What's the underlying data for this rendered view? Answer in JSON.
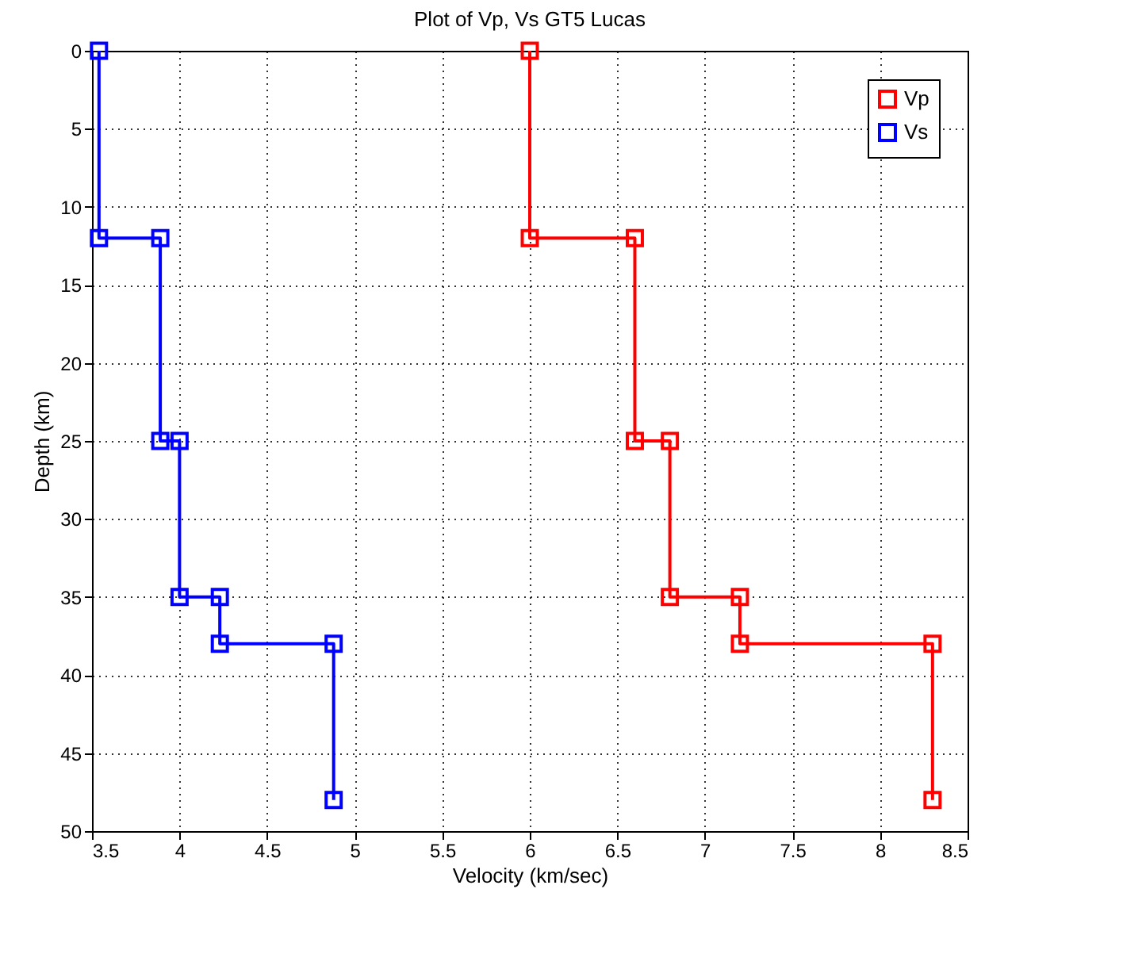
{
  "chart_data": {
    "type": "line",
    "title": "Plot of Vp, Vs        GT5 Lucas",
    "xlabel": "Velocity (km/sec)",
    "ylabel": "Depth (km)",
    "xlim": [
      3.5,
      8.5
    ],
    "xticks": [
      3.5,
      4,
      4.5,
      5,
      5.5,
      6,
      6.5,
      7,
      7.5,
      8,
      8.5
    ],
    "ylim": [
      50,
      0
    ],
    "yticks": [
      0,
      5,
      10,
      15,
      20,
      25,
      30,
      35,
      40,
      45,
      50
    ],
    "grid": true,
    "legend": "top right",
    "marker": "square",
    "line_style": "solid",
    "series": [
      {
        "name": "Vp",
        "color": "#ff0000",
        "x": [
          6.0,
          6.0,
          6.6,
          6.6,
          6.8,
          6.8,
          7.2,
          7.2,
          8.3,
          8.3
        ],
        "values": [
          0,
          12,
          12,
          25,
          25,
          35,
          35,
          38,
          38,
          48
        ]
      },
      {
        "name": "Vs",
        "color": "#0000ff",
        "x": [
          3.54,
          3.54,
          3.89,
          3.89,
          4.0,
          4.0,
          4.23,
          4.23,
          4.88,
          4.88
        ],
        "values": [
          0,
          12,
          12,
          25,
          25,
          35,
          35,
          38,
          38,
          48
        ]
      }
    ]
  }
}
